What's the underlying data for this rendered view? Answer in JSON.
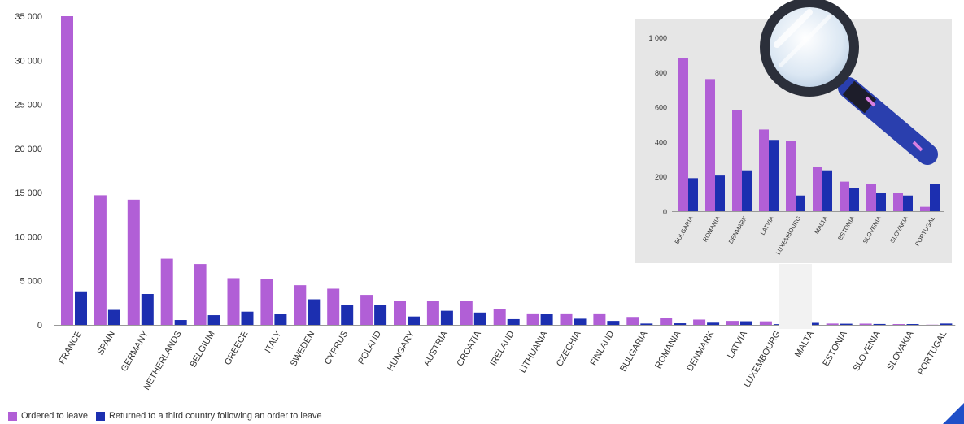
{
  "chart_data": [
    {
      "type": "bar",
      "categories": [
        "FRANCE",
        "SPAIN",
        "GERMANY",
        "NETHERLANDS",
        "BELGIUM",
        "GREECE",
        "ITALY",
        "SWEDEN",
        "CYPRUS",
        "POLAND",
        "HUNGARY",
        "AUSTRIA",
        "CROATIA",
        "IRELAND",
        "LITHUANIA",
        "CZECHIA",
        "FINLAND",
        "BULGARIA",
        "ROMANIA",
        "DENMARK",
        "LATVIA",
        "LUXEMBOURG",
        "MALTA",
        "ESTONIA",
        "SLOVENIA",
        "SLOVAKIA",
        "PORTUGAL"
      ],
      "series": [
        {
          "name": "Ordered to leave",
          "color": "#b15fd6",
          "values": [
            35000,
            14700,
            14200,
            7500,
            6900,
            5300,
            5200,
            4500,
            4100,
            3400,
            2700,
            2700,
            2700,
            1800,
            1300,
            1300,
            1300,
            900,
            800,
            600,
            450,
            400,
            250,
            150,
            140,
            90,
            20
          ]
        },
        {
          "name": "Returned to a third country following an order to leave",
          "color": "#1c2fb0",
          "values": [
            3800,
            1700,
            3500,
            550,
            1100,
            1500,
            1200,
            2900,
            2300,
            2300,
            950,
            1600,
            1400,
            650,
            1250,
            700,
            450,
            150,
            180,
            250,
            410,
            80,
            230,
            130,
            100,
            90,
            150
          ]
        }
      ],
      "yticks": [
        "35 000",
        "30 000",
        "25 000",
        "20 000",
        "15 000",
        "10 000",
        "5 000",
        "0"
      ],
      "ytick_values": [
        35000,
        30000,
        25000,
        20000,
        15000,
        10000,
        5000,
        0
      ],
      "ylim": [
        0,
        35000
      ],
      "legend": "bottom-left"
    },
    {
      "type": "bar",
      "categories": [
        "BULGARIA",
        "ROMANIA",
        "DENMARK",
        "LATVIA",
        "LUXEMBOURG",
        "MALTA",
        "ESTONIA",
        "SLOVENIA",
        "SLOVAKIA",
        "PORTUGAL"
      ],
      "series": [
        {
          "name": "Ordered to leave",
          "color": "#b15fd6",
          "values": [
            880,
            760,
            580,
            470,
            405,
            255,
            170,
            155,
            105,
            25
          ]
        },
        {
          "name": "Returned to a third country following an order to leave",
          "color": "#1c2fb0",
          "values": [
            190,
            205,
            235,
            410,
            90,
            235,
            135,
            105,
            90,
            155
          ]
        }
      ],
      "yticks": [
        "1 000",
        "800",
        "600",
        "400",
        "200",
        "0"
      ],
      "ytick_values": [
        1000,
        800,
        600,
        400,
        200,
        0
      ],
      "ylim": [
        0,
        1000
      ]
    }
  ],
  "legend": {
    "items": [
      {
        "label": "Ordered to leave",
        "color": "#b15fd6"
      },
      {
        "label": "Returned to a third country following an order to leave",
        "color": "#1c2fb0"
      }
    ]
  },
  "icons": {
    "magnifier": "magnifying-glass-icon",
    "corner": "corner-triangle-icon"
  }
}
